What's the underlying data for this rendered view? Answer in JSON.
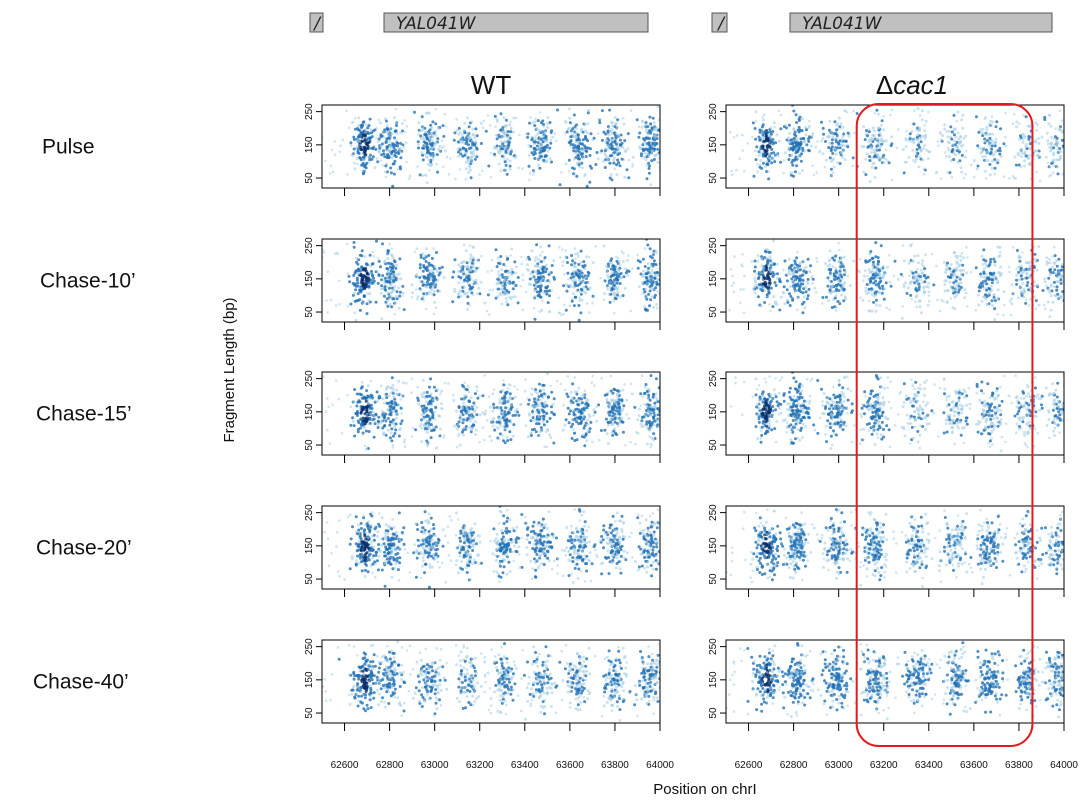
{
  "gene_track": {
    "gene_name": "YAL041W",
    "neighbor_fragment": "/",
    "color": "#c0c0c0"
  },
  "colors": {
    "point_dark": "#08306b",
    "point_mid": "#2171b5",
    "point_light": "#9ecae1",
    "highlight_box": "#e31a1c"
  },
  "chart_data": {
    "type": "scatter",
    "ylabel": "Fragment Length (bp)",
    "xlabel": "Position on chrI",
    "xlim": [
      62500,
      64000
    ],
    "ylim": [
      20,
      270
    ],
    "x_ticks": [
      62600,
      62800,
      63000,
      63200,
      63400,
      63600,
      63800,
      64000
    ],
    "y_ticks": [
      50,
      150,
      250
    ],
    "columns": [
      {
        "id": "wt",
        "title_prefix": "",
        "title_italic": "WT"
      },
      {
        "id": "cac1",
        "title_prefix": "Δ",
        "title_italic": "cac1"
      }
    ],
    "rows": [
      "Pulse",
      "Chase-10’",
      "Chase-15’",
      "Chase-20’",
      "Chase-40’"
    ],
    "nucleosome_centers": {
      "wt": [
        62690,
        62805,
        62975,
        63145,
        63310,
        63470,
        63640,
        63800,
        63960
      ],
      "cac1": [
        62680,
        62815,
        62990,
        63165,
        63350,
        63520,
        63670,
        63840,
        63970
      ]
    },
    "signal": {
      "wt": [
        [
          0.95,
          0.75,
          0.7,
          0.6,
          0.6,
          0.7,
          0.75,
          0.75,
          0.8
        ],
        [
          0.95,
          0.7,
          0.65,
          0.55,
          0.55,
          0.65,
          0.65,
          0.65,
          0.7
        ],
        [
          0.95,
          0.7,
          0.65,
          0.6,
          0.65,
          0.7,
          0.7,
          0.7,
          0.75
        ],
        [
          0.95,
          0.7,
          0.65,
          0.6,
          0.65,
          0.7,
          0.65,
          0.65,
          0.7
        ],
        [
          0.95,
          0.7,
          0.6,
          0.5,
          0.55,
          0.6,
          0.6,
          0.6,
          0.7
        ]
      ],
      "cac1": [
        [
          0.85,
          0.75,
          0.5,
          0.55,
          0.3,
          0.3,
          0.45,
          0.35,
          0.35
        ],
        [
          0.85,
          0.75,
          0.6,
          0.65,
          0.4,
          0.45,
          0.6,
          0.5,
          0.45
        ],
        [
          0.9,
          0.8,
          0.7,
          0.75,
          0.35,
          0.4,
          0.55,
          0.4,
          0.35
        ],
        [
          0.9,
          0.8,
          0.7,
          0.75,
          0.55,
          0.55,
          0.65,
          0.5,
          0.45
        ],
        [
          0.9,
          0.85,
          0.8,
          0.75,
          0.65,
          0.65,
          0.75,
          0.7,
          0.6
        ]
      ]
    },
    "highlight_region": {
      "column": "cac1",
      "x_start": 63080,
      "x_end": 63860
    }
  }
}
